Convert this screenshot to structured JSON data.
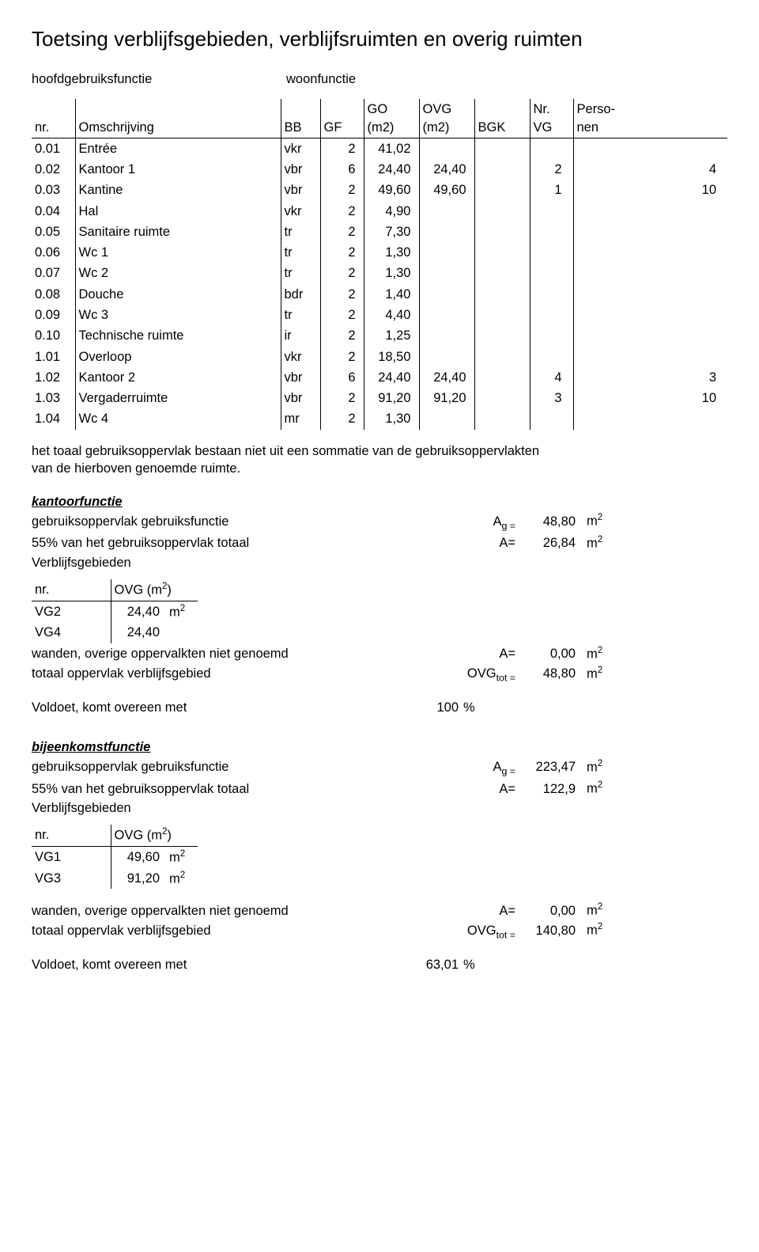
{
  "title": "Toetsing verblijfsgebieden, verblijfsruimten en overig ruimten",
  "header": {
    "label": "hoofdgebruiksfunctie",
    "value": "woonfunctie"
  },
  "main_table": {
    "columns": [
      "nr.",
      "Omschrijving",
      "BB",
      "GF",
      "GO",
      "OVG",
      "BGK",
      "Nr.",
      "Perso-"
    ],
    "sub_columns": [
      "",
      "",
      "",
      "",
      "(m2)",
      "(m2)",
      "",
      "VG",
      "nen"
    ],
    "rows": [
      {
        "nr": "0.01",
        "desc": "Entrée",
        "bb": "vkr",
        "gf": "2",
        "go": "41,02",
        "ovg": "",
        "bgk": "",
        "nrc": "",
        "per": ""
      },
      {
        "nr": "0.02",
        "desc": "Kantoor 1",
        "bb": "vbr",
        "gf": "6",
        "go": "24,40",
        "ovg": "24,40",
        "bgk": "",
        "nrc": "2",
        "per": "4"
      },
      {
        "nr": "0.03",
        "desc": "Kantine",
        "bb": "vbr",
        "gf": "2",
        "go": "49,60",
        "ovg": "49,60",
        "bgk": "",
        "nrc": "1",
        "per": "10"
      },
      {
        "nr": "0.04",
        "desc": "Hal",
        "bb": "vkr",
        "gf": "2",
        "go": "4,90",
        "ovg": "",
        "bgk": "",
        "nrc": "",
        "per": ""
      },
      {
        "nr": "0.05",
        "desc": "Sanitaire ruimte",
        "bb": "tr",
        "gf": "2",
        "go": "7,30",
        "ovg": "",
        "bgk": "",
        "nrc": "",
        "per": ""
      },
      {
        "nr": "0.06",
        "desc": "Wc 1",
        "bb": "tr",
        "gf": "2",
        "go": "1,30",
        "ovg": "",
        "bgk": "",
        "nrc": "",
        "per": ""
      },
      {
        "nr": "0.07",
        "desc": "Wc 2",
        "bb": "tr",
        "gf": "2",
        "go": "1,30",
        "ovg": "",
        "bgk": "",
        "nrc": "",
        "per": ""
      },
      {
        "nr": "0.08",
        "desc": "Douche",
        "bb": "bdr",
        "gf": "2",
        "go": "1,40",
        "ovg": "",
        "bgk": "",
        "nrc": "",
        "per": ""
      },
      {
        "nr": "0.09",
        "desc": "Wc 3",
        "bb": "tr",
        "gf": "2",
        "go": "4,40",
        "ovg": "",
        "bgk": "",
        "nrc": "",
        "per": ""
      },
      {
        "nr": "0.10",
        "desc": "Technische ruimte",
        "bb": "ir",
        "gf": "2",
        "go": "1,25",
        "ovg": "",
        "bgk": "",
        "nrc": "",
        "per": ""
      },
      {
        "nr": "1.01",
        "desc": "Overloop",
        "bb": "vkr",
        "gf": "2",
        "go": "18,50",
        "ovg": "",
        "bgk": "",
        "nrc": "",
        "per": ""
      },
      {
        "nr": "1.02",
        "desc": "Kantoor 2",
        "bb": "vbr",
        "gf": "6",
        "go": "24,40",
        "ovg": "24,40",
        "bgk": "",
        "nrc": "4",
        "per": "3"
      },
      {
        "nr": "1.03",
        "desc": "Vergaderruimte",
        "bb": "vbr",
        "gf": "2",
        "go": "91,20",
        "ovg": "91,20",
        "bgk": "",
        "nrc": "3",
        "per": "10"
      },
      {
        "nr": "1.04",
        "desc": "Wc 4",
        "bb": "mr",
        "gf": "2",
        "go": "1,30",
        "ovg": "",
        "bgk": "",
        "nrc": "",
        "per": ""
      }
    ]
  },
  "note_line1": "het toaal gebruiksoppervlak bestaan niet uit een sommatie van de gebruiksoppervlakten",
  "note_line2": "van de hierboven genoemde ruimte.",
  "kantoor": {
    "title": "kantoorfunctie",
    "rows": [
      {
        "label": "gebruiksoppervlak gebruiksfunctie",
        "sym": "A",
        "sub": "g =",
        "val": "48,80",
        "unit": "m",
        "sup": "2"
      },
      {
        "label": "55% van het gebruiksoppervlak totaal",
        "sym": "A=",
        "sub": "",
        "val": "26,84",
        "unit": "m",
        "sup": "2"
      }
    ],
    "sub_label": "Verblijfsgebieden",
    "small_table": {
      "head_nr": "nr.",
      "head_ovg": "OVG (m",
      "head_sup": "2",
      "head_close": ")",
      "rows": [
        {
          "nr": "VG2",
          "val": "24,40",
          "unit": "m",
          "sup": "2"
        },
        {
          "nr": "VG4",
          "val": "24,40",
          "unit": "",
          "sup": ""
        }
      ]
    },
    "after": [
      {
        "label": "wanden, overige oppervalkten niet genoemd",
        "sym": "A=",
        "sub": "",
        "val": "0,00",
        "unit": "m",
        "sup": "2"
      },
      {
        "label": "totaal oppervlak verblijfsgebied",
        "sym": "OVG",
        "sub": "tot =",
        "val": "48,80",
        "unit": "m",
        "sup": "2"
      }
    ],
    "voldoet_label": "Voldoet, komt overeen met",
    "voldoet_val": "100",
    "voldoet_pct": "%"
  },
  "bijeenkomst": {
    "title": "bijeenkomstfunctie",
    "rows": [
      {
        "label": "gebruiksoppervlak gebruiksfunctie",
        "sym": "A",
        "sub": "g =",
        "val": "223,47",
        "unit": "m",
        "sup": "2"
      },
      {
        "label": "55% van het gebruiksoppervlak totaal",
        "sym": "A=",
        "sub": "",
        "val": "122,9",
        "unit": "m",
        "sup": "2"
      }
    ],
    "sub_label": "Verblijfsgebieden",
    "small_table": {
      "head_nr": "nr.",
      "head_ovg": "OVG (m",
      "head_sup": "2",
      "head_close": ")",
      "rows": [
        {
          "nr": "VG1",
          "val": "49,60",
          "unit": "m",
          "sup": "2"
        },
        {
          "nr": "VG3",
          "val": "91,20",
          "unit": "m",
          "sup": "2"
        }
      ]
    },
    "after": [
      {
        "label": "wanden, overige oppervalkten niet genoemd",
        "sym": "A=",
        "sub": "",
        "val": "0,00",
        "unit": "m",
        "sup": "2"
      },
      {
        "label": "totaal oppervlak verblijfsgebied",
        "sym": "OVG",
        "sub": "tot =",
        "val": "140,80",
        "unit": "m",
        "sup": "2"
      }
    ],
    "voldoet_label": "Voldoet, komt overeen met",
    "voldoet_val": "63,01",
    "voldoet_pct": "%"
  }
}
